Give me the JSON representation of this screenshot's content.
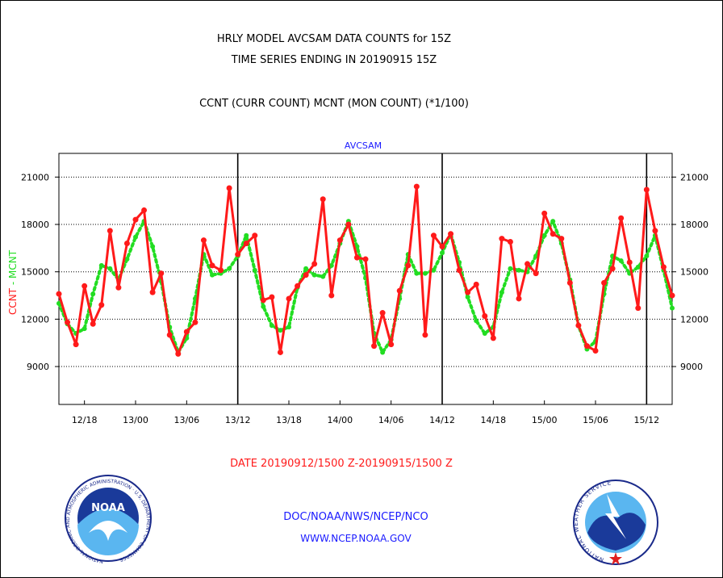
{
  "header": {
    "title_line1": "HRLY MODEL AVCSAM DATA COUNTS for 15Z",
    "title_line2": "TIME SERIES ENDING IN 20190915 15Z",
    "subtitle": "CCNT (CURR COUNT) MCNT (MON COUNT) (*1/100)"
  },
  "footer": {
    "date_range": "DATE 20190912/1500 Z-20190915/1500 Z",
    "org": "DOC/NOAA/NWS/NCEP/NCO",
    "url": "WWW.NCEP.NOAA.GOV",
    "noaa_logo_text": "NOAA",
    "noaa_seal_text": "NATIONAL OCEANIC AND ATMOSPHERIC ADMINISTRATION · U.S. DEPARTMENT OF COMMERCE",
    "nws_seal_text": "NATIONAL WEATHER SERVICE"
  },
  "colors": {
    "ccnt": "#ff1a1a",
    "mcnt": "#22dd22",
    "text_blue": "#1a1aff",
    "text_red": "#ff1a1a"
  },
  "chart_data": {
    "type": "line",
    "title": "AVCSAM",
    "ylabel_ccnt": "CCNT",
    "ylabel_mcnt": "MCNT",
    "ylim": [
      6600,
      22500
    ],
    "yticks": [
      9000,
      12000,
      15000,
      18000,
      21000
    ],
    "xlim": [
      0,
      72
    ],
    "xticks": [
      {
        "x": 3,
        "label": "12/18"
      },
      {
        "x": 9,
        "label": "13/00"
      },
      {
        "x": 15,
        "label": "13/06"
      },
      {
        "x": 21,
        "label": "13/12"
      },
      {
        "x": 27,
        "label": "13/18"
      },
      {
        "x": 33,
        "label": "14/00"
      },
      {
        "x": 39,
        "label": "14/06"
      },
      {
        "x": 45,
        "label": "14/12"
      },
      {
        "x": 51,
        "label": "14/18"
      },
      {
        "x": 57,
        "label": "15/00"
      },
      {
        "x": 63,
        "label": "15/06"
      },
      {
        "x": 69,
        "label": "15/12"
      }
    ],
    "day_boundaries": [
      21,
      45,
      69
    ],
    "grid": true,
    "x_unit": "hours from 20190912/1500 Z",
    "series": [
      {
        "name": "CCNT",
        "values": [
          13600,
          11800,
          10400,
          14100,
          11700,
          12900,
          17600,
          14000,
          16800,
          18300,
          18900,
          13700,
          14900,
          11000,
          9800,
          11200,
          11800,
          17000,
          15400,
          15100,
          20300,
          16100,
          16800,
          17300,
          13200,
          13400,
          9900,
          13300,
          14100,
          14800,
          15500,
          19600,
          13500,
          17000,
          18000,
          15900,
          15800,
          10300,
          12400,
          10400,
          13800,
          15400,
          20400,
          11000,
          17300,
          16600,
          17400,
          15100,
          13700,
          14200,
          12200,
          10800,
          17100,
          16900,
          13300,
          15500,
          14900,
          18700,
          17400,
          17100,
          14300,
          11600,
          10300,
          10000,
          14300,
          15200,
          18400,
          15600,
          12700,
          20200,
          17600,
          15300,
          13500
        ]
      },
      {
        "name": "MCNT",
        "values": [
          13000,
          11700,
          11100,
          11400,
          13600,
          15400,
          15200,
          14500,
          15800,
          17200,
          18200,
          16600,
          14400,
          11500,
          9900,
          10800,
          13300,
          16100,
          14800,
          14900,
          15200,
          16000,
          17300,
          15100,
          12800,
          11600,
          11300,
          11500,
          14000,
          15200,
          14800,
          14700,
          15400,
          16800,
          18200,
          16600,
          14600,
          11100,
          9900,
          10700,
          13300,
          16100,
          14900,
          14900,
          15100,
          16200,
          17400,
          15600,
          13400,
          11900,
          11100,
          11500,
          13700,
          15200,
          15100,
          15000,
          16000,
          17300,
          18200,
          16800,
          14500,
          11600,
          10100,
          10600,
          13600,
          16000,
          15700,
          14900,
          15300,
          16000,
          17300,
          15100,
          12700
        ]
      }
    ]
  }
}
